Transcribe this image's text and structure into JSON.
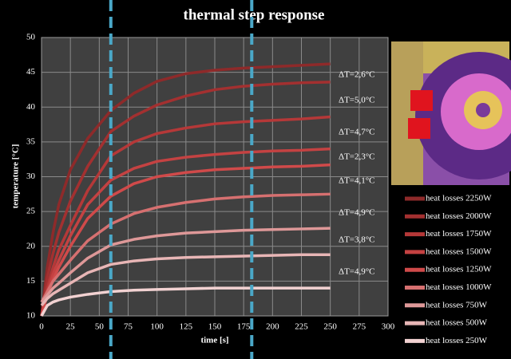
{
  "chart_data": {
    "type": "line",
    "title": "thermal step response",
    "x_label": "time [s]",
    "y_label": "temperature [°C]",
    "x": [
      0,
      5,
      10,
      15,
      25,
      40,
      60,
      80,
      100,
      125,
      150,
      175,
      200,
      225,
      250
    ],
    "xlim": [
      0,
      300
    ],
    "xticks": [
      0,
      25,
      50,
      75,
      100,
      125,
      150,
      175,
      200,
      225,
      250,
      275,
      300
    ],
    "ylim": [
      10,
      50
    ],
    "yticks": [
      10,
      15,
      20,
      25,
      30,
      35,
      40,
      45,
      50
    ],
    "grid": true,
    "markers_x": [
      60,
      182
    ],
    "marker_color": "#4aa8c8",
    "series": [
      {
        "name": "heat losses 2250W",
        "color": "#8e2a2a",
        "values": [
          10,
          17,
          22,
          26,
          31,
          35.5,
          39.5,
          42,
          43.7,
          44.8,
          45.3,
          45.6,
          45.8,
          46,
          46.2
        ]
      },
      {
        "name": "heat losses 2000W",
        "color": "#a33030",
        "values": [
          10,
          15.5,
          19,
          22,
          26.5,
          31.5,
          36.5,
          38.7,
          40.3,
          41.6,
          42.5,
          43,
          43.3,
          43.5,
          43.6
        ]
      },
      {
        "name": "heat losses 1750W",
        "color": "#b53838",
        "values": [
          10,
          14,
          17,
          19.5,
          23,
          28,
          33,
          35,
          36.2,
          37,
          37.6,
          37.9,
          38.1,
          38.3,
          38.6
        ]
      },
      {
        "name": "heat losses 1500W",
        "color": "#c44242",
        "values": [
          10,
          13.5,
          16,
          18,
          21.5,
          26,
          29.5,
          31.2,
          32.2,
          32.8,
          33.2,
          33.5,
          33.7,
          33.8,
          34
        ]
      },
      {
        "name": "heat losses 1250W",
        "color": "#d04a4a",
        "values": [
          10,
          13,
          15.2,
          17,
          20,
          24,
          27.2,
          29,
          30,
          30.6,
          31,
          31.2,
          31.4,
          31.5,
          31.7
        ]
      },
      {
        "name": "heat losses 1000W",
        "color": "#d67070",
        "values": [
          12,
          13.5,
          15,
          16,
          18,
          20.8,
          23.2,
          24.7,
          25.6,
          26.3,
          26.8,
          27.1,
          27.3,
          27.4,
          27.5
        ]
      },
      {
        "name": "heat losses 750W",
        "color": "#de9898",
        "values": [
          12,
          13,
          14,
          14.7,
          16.2,
          18.3,
          20.2,
          21,
          21.5,
          21.9,
          22.1,
          22.3,
          22.4,
          22.5,
          22.6
        ]
      },
      {
        "name": "heat losses 500W",
        "color": "#e8b6b6",
        "values": [
          11.5,
          12.5,
          13.2,
          13.7,
          14.7,
          16.2,
          17.4,
          17.9,
          18.2,
          18.4,
          18.5,
          18.6,
          18.7,
          18.8,
          18.8
        ]
      },
      {
        "name": "heat losses 250W",
        "color": "#f2d2d2",
        "values": [
          10,
          11.5,
          12,
          12.3,
          12.7,
          13.1,
          13.5,
          13.7,
          13.8,
          13.9,
          14,
          14,
          14,
          14,
          14
        ]
      }
    ],
    "annotations": [
      "ΔT=2,6°C",
      "ΔT=5,0°C",
      "ΔT=4,7°C",
      "ΔT=2,3°C",
      "ΔT=4,1°C",
      "ΔT=4,9°C",
      "ΔT=3,8°C",
      "ΔT=4,9°C"
    ]
  }
}
